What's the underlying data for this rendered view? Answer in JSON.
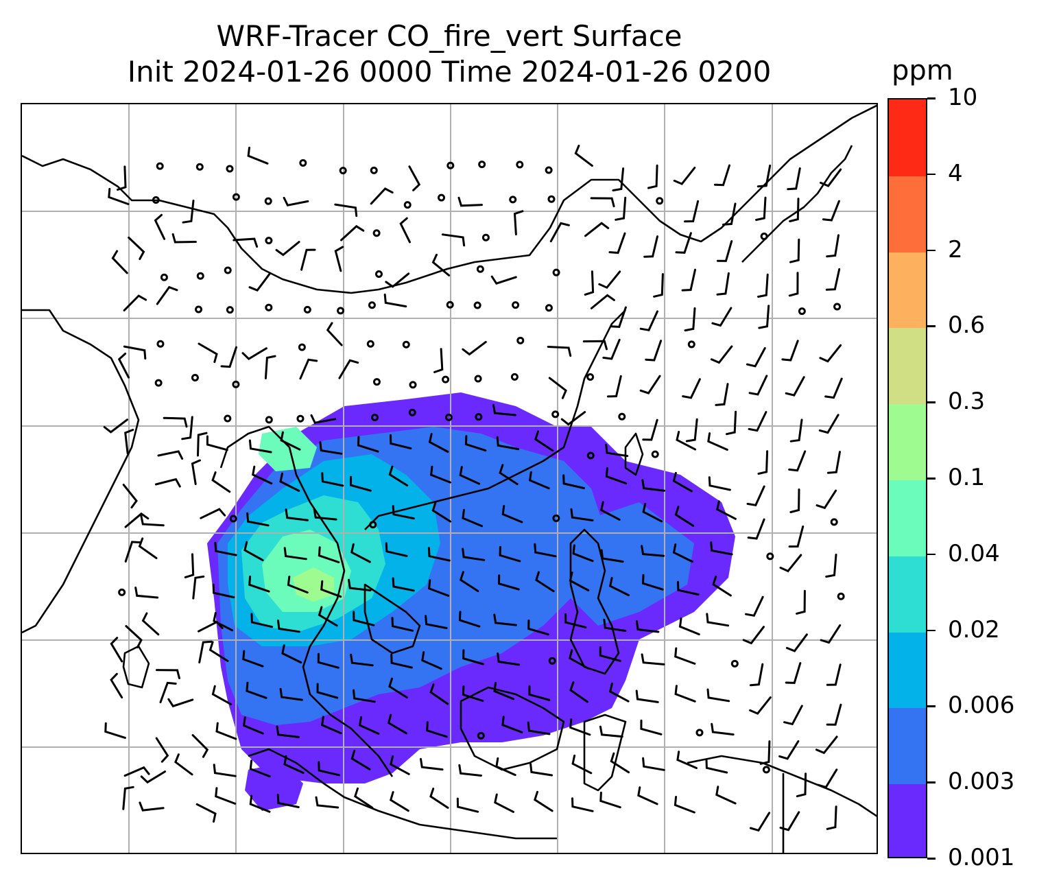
{
  "title": {
    "line1": "WRF-Tracer CO_fire_vert Surface",
    "line2": "Init 2024-01-26 0000 Time 2024-01-26 0200"
  },
  "colorbar": {
    "unit": "ppm",
    "levels": [
      "0.001",
      "0.003",
      "0.006",
      "0.02",
      "0.04",
      "0.1",
      "0.3",
      "0.6",
      "2",
      "4",
      "10"
    ],
    "colors": [
      "#6a2afd",
      "#3474f2",
      "#02b2e9",
      "#2fded2",
      "#6bfbbb",
      "#9efb8f",
      "#d0df83",
      "#fdb15f",
      "#fe6e3a",
      "#ff2a16"
    ]
  },
  "map": {
    "coastline_color": "#000000",
    "gridline_color": "#b0b0b0",
    "wind_barb_color": "#000000",
    "calm_marker": "circle"
  }
}
